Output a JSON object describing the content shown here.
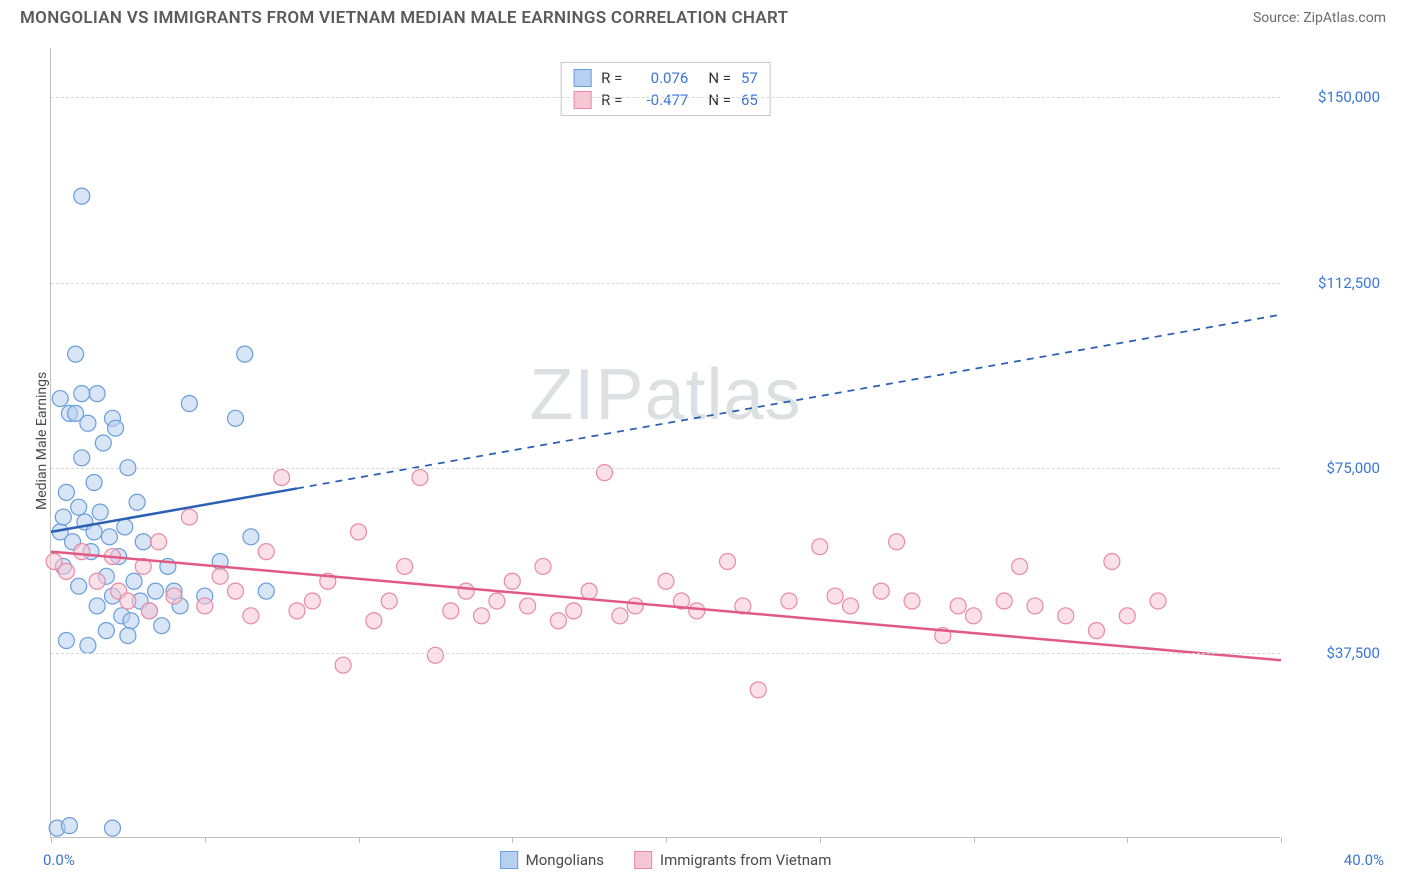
{
  "header": {
    "title": "MONGOLIAN VS IMMIGRANTS FROM VIETNAM MEDIAN MALE EARNINGS CORRELATION CHART",
    "source": "Source: ZipAtlas.com"
  },
  "axes": {
    "ylabel": "Median Male Earnings",
    "xmin_label": "0.0%",
    "xmax_label": "40.0%",
    "xlim": [
      0,
      40
    ],
    "ylim": [
      0,
      160000
    ],
    "ytick_values": [
      37500,
      75000,
      112500,
      150000
    ],
    "ytick_labels": [
      "$37,500",
      "$75,000",
      "$112,500",
      "$150,000"
    ],
    "x_ticks": [
      0,
      5,
      10,
      15,
      20,
      25,
      30,
      35,
      40
    ],
    "grid_color": "#d8d8d8",
    "axis_color": "#c0c0c0",
    "label_color": "#3a76d6",
    "label_fontsize": 15
  },
  "watermark": "ZIPatlas",
  "legend_box": {
    "series": [
      {
        "swatch_fill": "#b7d0ef",
        "swatch_stroke": "#6a9edb",
        "r_label": "R =",
        "r_value": "0.076",
        "n_label": "N =",
        "n_value": "57"
      },
      {
        "swatch_fill": "#f7c6d4",
        "swatch_stroke": "#e88aa5",
        "r_label": "R =",
        "r_value": "-0.477",
        "n_label": "N =",
        "n_value": "65"
      }
    ]
  },
  "bottom_legend": [
    {
      "swatch_fill": "#b7d0ef",
      "swatch_stroke": "#6a9edb",
      "label": "Mongolians"
    },
    {
      "swatch_fill": "#f7c6d4",
      "swatch_stroke": "#e88aa5",
      "label": "Immigrants from Vietnam"
    }
  ],
  "chart": {
    "type": "scatter",
    "background_color": "#ffffff",
    "marker_radius": 8,
    "marker_opacity": 0.55,
    "series": [
      {
        "name": "Mongolians",
        "fill": "#b7d0ef",
        "stroke": "#6a9edb",
        "trend": {
          "color": "#2b5fb3",
          "width": 2.5,
          "solid_until_x": 8,
          "y_at_x0": 62000,
          "y_at_x40": 106000
        },
        "points": [
          [
            0.3,
            62000
          ],
          [
            0.4,
            55000
          ],
          [
            0.5,
            70000
          ],
          [
            0.6,
            86000
          ],
          [
            0.7,
            60000
          ],
          [
            0.8,
            98000
          ],
          [
            0.9,
            51000
          ],
          [
            1.0,
            130000
          ],
          [
            1.0,
            77000
          ],
          [
            1.1,
            64000
          ],
          [
            1.2,
            84000
          ],
          [
            1.3,
            58000
          ],
          [
            1.4,
            72000
          ],
          [
            1.5,
            90000
          ],
          [
            1.5,
            47000
          ],
          [
            1.6,
            66000
          ],
          [
            1.7,
            80000
          ],
          [
            1.8,
            53000
          ],
          [
            1.9,
            61000
          ],
          [
            2.0,
            85000
          ],
          [
            2.0,
            49000
          ],
          [
            2.1,
            83000
          ],
          [
            2.2,
            57000
          ],
          [
            2.3,
            45000
          ],
          [
            2.4,
            63000
          ],
          [
            2.5,
            75000
          ],
          [
            2.6,
            44000
          ],
          [
            2.7,
            52000
          ],
          [
            2.8,
            68000
          ],
          [
            2.9,
            48000
          ],
          [
            3.0,
            60000
          ],
          [
            3.2,
            46000
          ],
          [
            3.4,
            50000
          ],
          [
            3.6,
            43000
          ],
          [
            3.8,
            55000
          ],
          [
            4.0,
            50000
          ],
          [
            4.2,
            47000
          ],
          [
            4.5,
            88000
          ],
          [
            5.0,
            49000
          ],
          [
            5.5,
            56000
          ],
          [
            6.0,
            85000
          ],
          [
            6.3,
            98000
          ],
          [
            6.5,
            61000
          ],
          [
            7.0,
            50000
          ],
          [
            0.5,
            40000
          ],
          [
            1.2,
            39000
          ],
          [
            1.8,
            42000
          ],
          [
            2.5,
            41000
          ],
          [
            0.2,
            2000
          ],
          [
            2.0,
            2000
          ],
          [
            0.6,
            2500
          ],
          [
            0.3,
            89000
          ],
          [
            0.8,
            86000
          ],
          [
            1.0,
            90000
          ],
          [
            1.4,
            62000
          ],
          [
            0.4,
            65000
          ],
          [
            0.9,
            67000
          ]
        ]
      },
      {
        "name": "Immigrants from Vietnam",
        "fill": "#f7c6d4",
        "stroke": "#e88aa5",
        "trend": {
          "color": "#e15a86",
          "width": 2.5,
          "solid_until_x": 40,
          "y_at_x0": 58000,
          "y_at_x40": 36000
        },
        "points": [
          [
            0.1,
            56000
          ],
          [
            0.5,
            54000
          ],
          [
            1.0,
            58000
          ],
          [
            1.5,
            52000
          ],
          [
            2.0,
            57000
          ],
          [
            2.2,
            50000
          ],
          [
            2.5,
            48000
          ],
          [
            3.0,
            55000
          ],
          [
            3.2,
            46000
          ],
          [
            3.5,
            60000
          ],
          [
            4.0,
            49000
          ],
          [
            4.5,
            65000
          ],
          [
            5.0,
            47000
          ],
          [
            5.5,
            53000
          ],
          [
            6.0,
            50000
          ],
          [
            6.5,
            45000
          ],
          [
            7.0,
            58000
          ],
          [
            7.5,
            73000
          ],
          [
            8.0,
            46000
          ],
          [
            8.5,
            48000
          ],
          [
            9.0,
            52000
          ],
          [
            9.5,
            35000
          ],
          [
            10.0,
            62000
          ],
          [
            10.5,
            44000
          ],
          [
            11.0,
            48000
          ],
          [
            11.5,
            55000
          ],
          [
            12.0,
            73000
          ],
          [
            12.5,
            37000
          ],
          [
            13.0,
            46000
          ],
          [
            13.5,
            50000
          ],
          [
            14.0,
            45000
          ],
          [
            14.5,
            48000
          ],
          [
            15.0,
            52000
          ],
          [
            15.5,
            47000
          ],
          [
            16.0,
            55000
          ],
          [
            16.5,
            44000
          ],
          [
            17.0,
            46000
          ],
          [
            17.5,
            50000
          ],
          [
            18.0,
            74000
          ],
          [
            18.5,
            45000
          ],
          [
            19.0,
            47000
          ],
          [
            20.0,
            52000
          ],
          [
            20.5,
            48000
          ],
          [
            21.0,
            46000
          ],
          [
            22.0,
            56000
          ],
          [
            22.5,
            47000
          ],
          [
            23.0,
            30000
          ],
          [
            24.0,
            48000
          ],
          [
            25.0,
            59000
          ],
          [
            25.5,
            49000
          ],
          [
            26.0,
            47000
          ],
          [
            27.0,
            50000
          ],
          [
            27.5,
            60000
          ],
          [
            28.0,
            48000
          ],
          [
            29.0,
            41000
          ],
          [
            29.5,
            47000
          ],
          [
            30.0,
            45000
          ],
          [
            31.0,
            48000
          ],
          [
            31.5,
            55000
          ],
          [
            32.0,
            47000
          ],
          [
            33.0,
            45000
          ],
          [
            34.0,
            42000
          ],
          [
            34.5,
            56000
          ],
          [
            35.0,
            45000
          ],
          [
            36.0,
            48000
          ]
        ]
      }
    ]
  }
}
